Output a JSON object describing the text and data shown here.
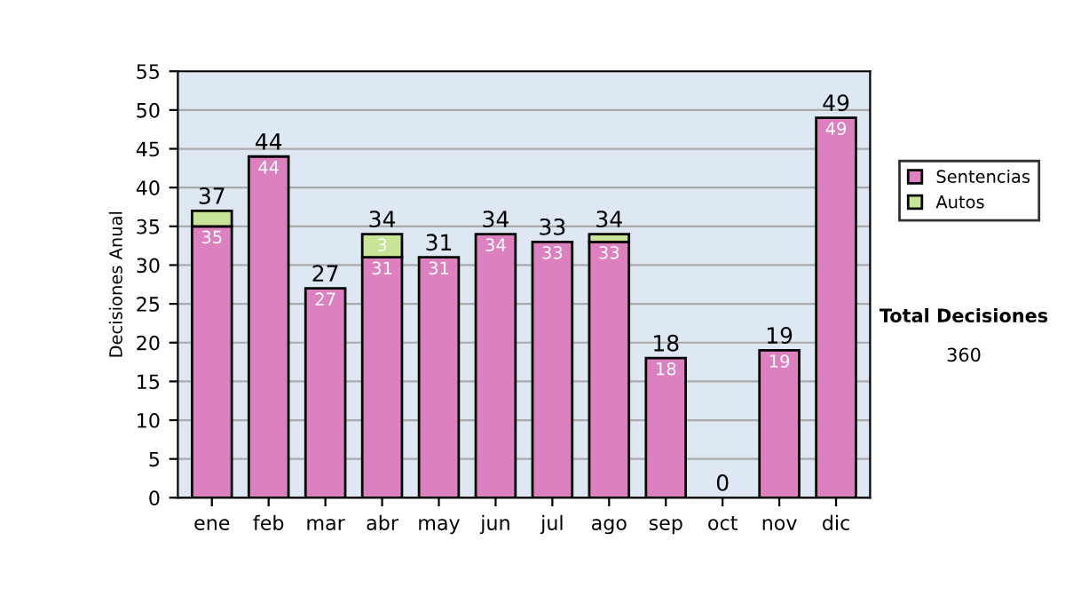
{
  "chart_data": {
    "type": "bar",
    "stacked": true,
    "ylabel": "Decisiones Anual",
    "categories": [
      "ene",
      "feb",
      "mar",
      "abr",
      "may",
      "jun",
      "jul",
      "ago",
      "sep",
      "oct",
      "nov",
      "dic"
    ],
    "series": [
      {
        "name": "Sentencias",
        "color": "#dc80c0",
        "values": [
          35,
          44,
          27,
          31,
          31,
          34,
          33,
          33,
          18,
          0,
          19,
          49
        ],
        "value_labels": [
          "35",
          "44",
          "27",
          "31",
          "31",
          "34",
          "33",
          "33",
          "18",
          null,
          "19",
          "49"
        ]
      },
      {
        "name": "Autos",
        "color": "#c8e496",
        "values": [
          2,
          0,
          0,
          3,
          0,
          0,
          0,
          1,
          0,
          0,
          0,
          0
        ],
        "value_labels": [
          null,
          null,
          null,
          "3",
          null,
          null,
          null,
          null,
          null,
          null,
          null,
          null
        ]
      }
    ],
    "totals": [
      "37",
      "44",
      "27",
      "34",
      "31",
      "34",
      "33",
      "34",
      "18",
      "0",
      "19",
      "49"
    ],
    "ylim": [
      0,
      55
    ],
    "yticks": [
      0,
      5,
      10,
      15,
      20,
      25,
      30,
      35,
      40,
      45,
      50,
      55
    ],
    "grid": "y",
    "legend": "right",
    "annotations": [
      "Total Decisiones",
      "360"
    ]
  }
}
